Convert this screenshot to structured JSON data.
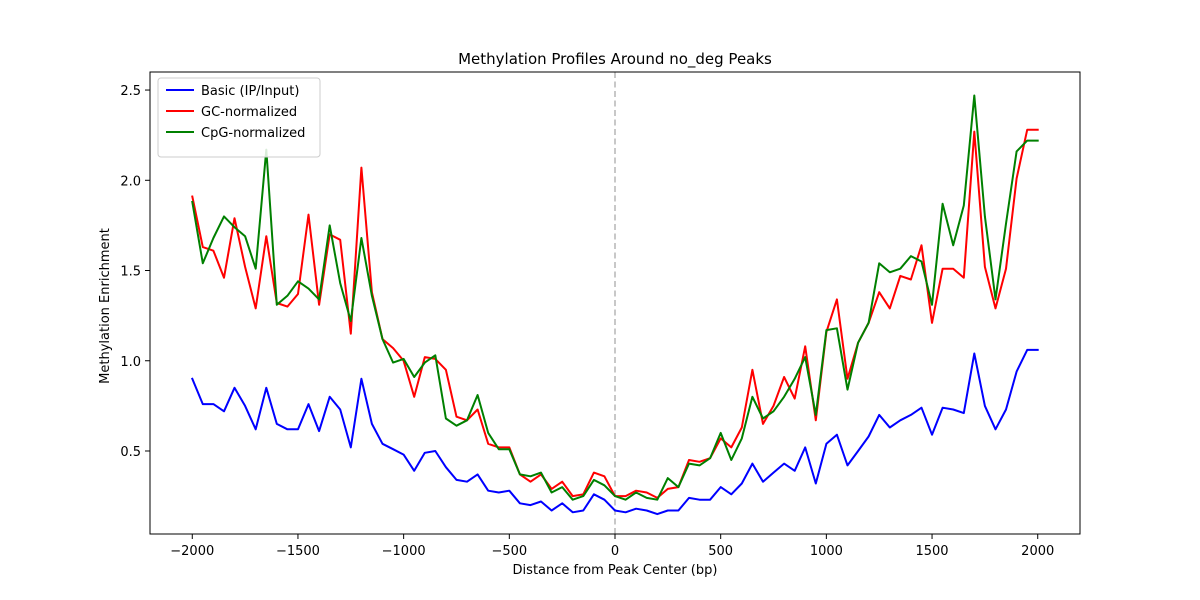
{
  "chart_data": {
    "type": "line",
    "title": "Methylation Profiles Around no_deg Peaks",
    "xlabel": "Distance from Peak Center (bp)",
    "ylabel": "Methylation Enrichment",
    "xlim": [
      -2200,
      2200
    ],
    "ylim": [
      0.04,
      2.6
    ],
    "xticks": [
      -2000,
      -1500,
      -1000,
      -500,
      0,
      500,
      1000,
      1500,
      2000
    ],
    "xtick_labels": [
      "−2000",
      "−1500",
      "−1000",
      "−500",
      "0",
      "500",
      "1000",
      "1500",
      "2000"
    ],
    "yticks": [
      0.5,
      1.0,
      1.5,
      2.0,
      2.5
    ],
    "ytick_labels": [
      "0.5",
      "1.0",
      "1.5",
      "2.0",
      "2.5"
    ],
    "grid": false,
    "legend_position": "top-left",
    "reference_line": {
      "x": 0,
      "style": "dashed",
      "color": "#bbbbbb"
    },
    "x": [
      -2000,
      -1950,
      -1900,
      -1850,
      -1800,
      -1750,
      -1700,
      -1650,
      -1600,
      -1550,
      -1500,
      -1450,
      -1400,
      -1350,
      -1300,
      -1250,
      -1200,
      -1150,
      -1100,
      -1050,
      -1000,
      -950,
      -900,
      -850,
      -800,
      -750,
      -700,
      -650,
      -600,
      -550,
      -500,
      -450,
      -400,
      -350,
      -300,
      -250,
      -200,
      -150,
      -100,
      -50,
      0,
      50,
      100,
      150,
      200,
      250,
      300,
      350,
      400,
      450,
      500,
      550,
      600,
      650,
      700,
      750,
      800,
      850,
      900,
      950,
      1000,
      1050,
      1100,
      1150,
      1200,
      1250,
      1300,
      1350,
      1400,
      1450,
      1500,
      1550,
      1600,
      1650,
      1700,
      1750,
      1800,
      1850,
      1900,
      1950,
      2000
    ],
    "series": [
      {
        "name": "Basic (IP/Input)",
        "color": "#0000ff",
        "values": [
          0.9,
          0.76,
          0.76,
          0.72,
          0.85,
          0.75,
          0.62,
          0.85,
          0.65,
          0.62,
          0.62,
          0.76,
          0.61,
          0.8,
          0.73,
          0.52,
          0.9,
          0.65,
          0.54,
          0.51,
          0.48,
          0.39,
          0.49,
          0.5,
          0.41,
          0.34,
          0.33,
          0.37,
          0.28,
          0.27,
          0.28,
          0.21,
          0.2,
          0.22,
          0.17,
          0.21,
          0.16,
          0.17,
          0.26,
          0.23,
          0.17,
          0.16,
          0.18,
          0.17,
          0.15,
          0.17,
          0.17,
          0.24,
          0.23,
          0.23,
          0.3,
          0.26,
          0.32,
          0.43,
          0.33,
          0.38,
          0.43,
          0.39,
          0.52,
          0.32,
          0.54,
          0.59,
          0.42,
          0.5,
          0.58,
          0.7,
          0.63,
          0.67,
          0.7,
          0.74,
          0.59,
          0.74,
          0.73,
          0.71,
          1.04,
          0.75,
          0.62,
          0.73,
          0.94,
          1.06,
          1.06
        ]
      },
      {
        "name": "GC-normalized",
        "color": "#ff0000",
        "values": [
          1.91,
          1.63,
          1.61,
          1.46,
          1.79,
          1.52,
          1.29,
          1.69,
          1.32,
          1.3,
          1.37,
          1.81,
          1.31,
          1.7,
          1.67,
          1.15,
          2.07,
          1.38,
          1.12,
          1.07,
          1.0,
          0.8,
          1.02,
          1.01,
          0.95,
          0.69,
          0.67,
          0.73,
          0.54,
          0.52,
          0.52,
          0.37,
          0.33,
          0.37,
          0.29,
          0.33,
          0.25,
          0.26,
          0.38,
          0.36,
          0.25,
          0.25,
          0.28,
          0.27,
          0.24,
          0.29,
          0.3,
          0.45,
          0.44,
          0.46,
          0.57,
          0.52,
          0.63,
          0.95,
          0.65,
          0.75,
          0.91,
          0.79,
          1.08,
          0.67,
          1.16,
          1.34,
          0.9,
          1.1,
          1.21,
          1.38,
          1.29,
          1.47,
          1.45,
          1.64,
          1.21,
          1.51,
          1.51,
          1.46,
          2.27,
          1.52,
          1.29,
          1.51,
          2.01,
          2.28,
          2.28
        ]
      },
      {
        "name": "CpG-normalized",
        "color": "#008000",
        "values": [
          1.88,
          1.54,
          1.68,
          1.8,
          1.74,
          1.69,
          1.51,
          2.17,
          1.31,
          1.36,
          1.44,
          1.4,
          1.34,
          1.75,
          1.43,
          1.22,
          1.68,
          1.36,
          1.12,
          0.99,
          1.01,
          0.91,
          0.99,
          1.03,
          0.68,
          0.64,
          0.67,
          0.81,
          0.6,
          0.51,
          0.51,
          0.37,
          0.36,
          0.38,
          0.27,
          0.3,
          0.23,
          0.25,
          0.34,
          0.31,
          0.25,
          0.23,
          0.27,
          0.24,
          0.23,
          0.35,
          0.3,
          0.43,
          0.42,
          0.46,
          0.6,
          0.45,
          0.57,
          0.8,
          0.68,
          0.72,
          0.8,
          0.9,
          1.02,
          0.7,
          1.17,
          1.18,
          0.84,
          1.1,
          1.21,
          1.54,
          1.49,
          1.51,
          1.58,
          1.55,
          1.31,
          1.87,
          1.64,
          1.86,
          2.47,
          1.8,
          1.34,
          1.76,
          2.16,
          2.22,
          2.22
        ]
      }
    ]
  }
}
